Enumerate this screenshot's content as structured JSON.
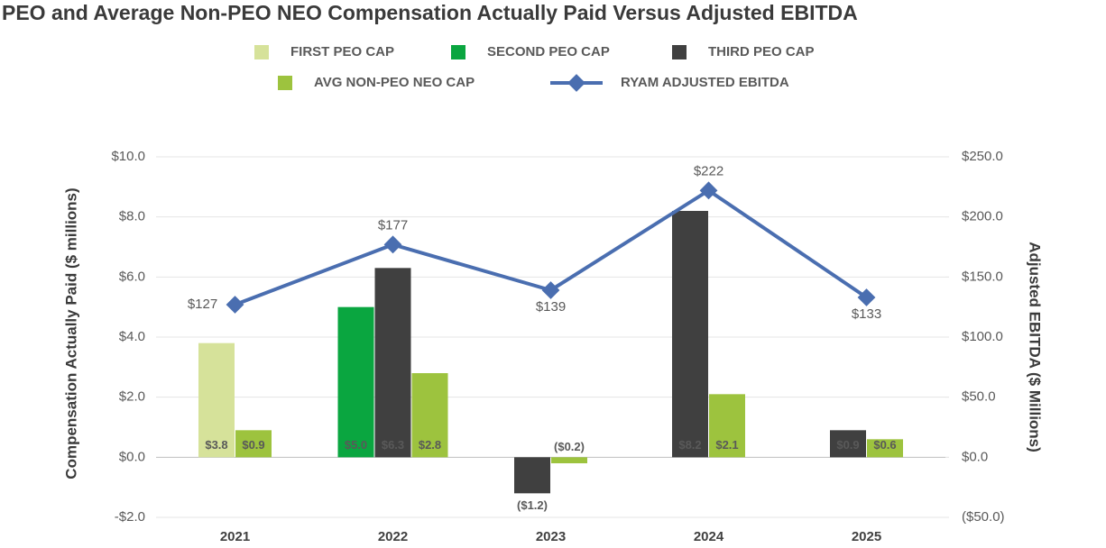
{
  "chart_data": {
    "type": "bar",
    "title": "PEO and Average Non-PEO NEO Compensation Actually Paid Versus Adjusted EBITDA",
    "y_label": "Compensation Actually Paid ($ millions)",
    "y2_label": "Adjusted EBITDA ($ Millions)",
    "categories": [
      "2021",
      "2022",
      "2023",
      "2024",
      "2025"
    ],
    "series": [
      {
        "name": "FIRST PEO CAP",
        "color": "#d6e29a",
        "values": [
          3.8,
          null,
          null,
          null,
          null
        ],
        "value_labels": [
          "$3.8",
          null,
          null,
          null,
          null
        ]
      },
      {
        "name": "SECOND PEO CAP",
        "color": "#0aa640",
        "values": [
          null,
          5.0,
          null,
          null,
          null
        ],
        "value_labels": [
          null,
          "$5.0",
          null,
          null,
          null
        ]
      },
      {
        "name": "THIRD PEO CAP",
        "color": "#404040",
        "values": [
          null,
          6.3,
          -1.2,
          8.2,
          0.9
        ],
        "value_labels": [
          null,
          "$6.3",
          "($1.2)",
          "$8.2",
          "$0.9"
        ]
      },
      {
        "name": "AVG NON-PEO NEO CAP",
        "color": "#9dc33e",
        "values": [
          0.9,
          2.8,
          -0.2,
          2.1,
          0.6
        ],
        "value_labels": [
          "$0.9",
          "$2.8",
          "($0.2)",
          "$2.1",
          "$0.6"
        ]
      },
      {
        "name": "RYAM ADJUSTED EBITDA",
        "color": "#4a6eb0",
        "type": "line",
        "axis": "y2",
        "values": [
          127,
          177,
          139,
          222,
          133
        ],
        "value_labels": [
          "$127",
          "$177",
          "$139",
          "$222",
          "$133"
        ]
      }
    ],
    "ylim": [
      -2,
      10
    ],
    "yticks": [
      {
        "value": -2,
        "label": "-$2.0"
      },
      {
        "value": 0,
        "label": "$0.0"
      },
      {
        "value": 2,
        "label": "$2.0"
      },
      {
        "value": 4,
        "label": "$4.0"
      },
      {
        "value": 6,
        "label": "$6.0"
      },
      {
        "value": 8,
        "label": "$8.0"
      },
      {
        "value": 10,
        "label": "$10.0"
      }
    ],
    "y2lim": [
      -50,
      250
    ],
    "y2ticks": [
      {
        "value": -50,
        "label": "($50.0)"
      },
      {
        "value": 0,
        "label": "$0.0"
      },
      {
        "value": 50,
        "label": "$50.0"
      },
      {
        "value": 100,
        "label": "$100.0"
      },
      {
        "value": 150,
        "label": "$150.0"
      },
      {
        "value": 200,
        "label": "$200.0"
      },
      {
        "value": 250,
        "label": "$250.0"
      }
    ],
    "grid": true
  }
}
